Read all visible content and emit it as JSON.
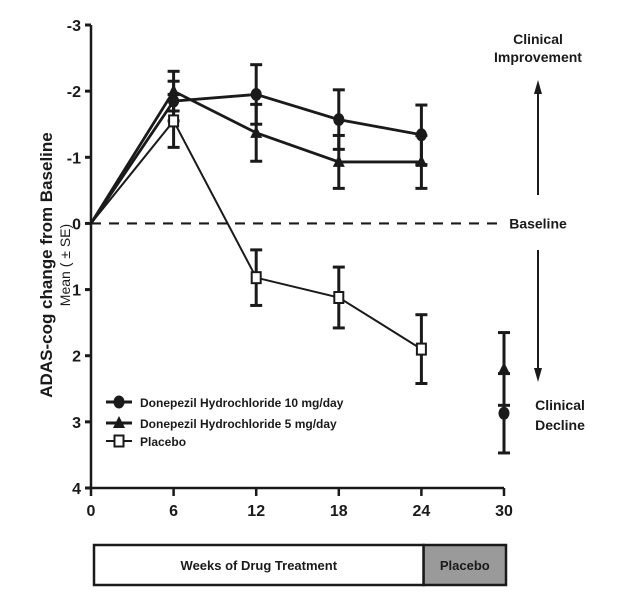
{
  "chart_data": {
    "type": "line",
    "title": "",
    "xlabel": "Weeks of Drug Treatment",
    "ylabel": "ADAS-cog change from Baseline",
    "ylabel_sub": "Mean ( ± SE)",
    "x": [
      0,
      6,
      12,
      18,
      24,
      30
    ],
    "xticks": [
      "0",
      "6",
      "12",
      "18",
      "24",
      "30"
    ],
    "yticks": [
      "-3",
      "-2",
      "-1",
      "0",
      "1",
      "2",
      "3",
      "4"
    ],
    "ylim": [
      -3,
      4
    ],
    "xlim": [
      0,
      30
    ],
    "y_inverted": true,
    "baseline_label": "Baseline",
    "improvement_label": [
      "Clinical",
      "Improvement"
    ],
    "decline_label": [
      "Clinical",
      "Decline"
    ],
    "phase_bar": [
      {
        "label": "Weeks of Drug Treatment",
        "from": 0,
        "to": 24,
        "color": "#ffffff"
      },
      {
        "label": "Placebo",
        "from": 24,
        "to": 30,
        "color": "#9a9a9a"
      }
    ],
    "legend_position": "bottom-left",
    "series": [
      {
        "name": "Donepezil Hydrochloride 10 mg/day",
        "marker": "circle",
        "x": [
          0,
          6,
          12,
          18,
          24,
          30
        ],
        "values": [
          0,
          -1.85,
          -1.95,
          -1.57,
          -1.34,
          2.87
        ],
        "se": [
          0,
          0.3,
          0.45,
          0.45,
          0.45,
          0.6
        ],
        "connect_until": 24
      },
      {
        "name": "Donepezil Hydrochloride 5 mg/day",
        "marker": "triangle",
        "x": [
          0,
          6,
          12,
          18,
          24,
          30
        ],
        "values": [
          0,
          -2.0,
          -1.37,
          -0.93,
          -0.93,
          2.2
        ],
        "se": [
          0,
          0.3,
          0.43,
          0.4,
          0.4,
          0.55
        ],
        "connect_until": 24
      },
      {
        "name": "Placebo",
        "marker": "square-open",
        "x": [
          0,
          6,
          12,
          18,
          24
        ],
        "values": [
          0,
          -1.55,
          0.82,
          1.12,
          1.9
        ],
        "se": [
          0,
          0.4,
          0.42,
          0.46,
          0.52
        ],
        "connect_until": 24
      }
    ]
  }
}
